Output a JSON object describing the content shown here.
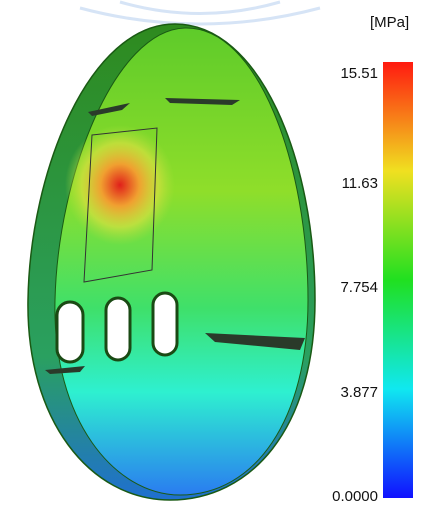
{
  "colorbar": {
    "unit": "[MPa]",
    "labels": [
      "15.51",
      "11.63",
      "7.754",
      "3.877",
      "0.0000"
    ]
  }
}
